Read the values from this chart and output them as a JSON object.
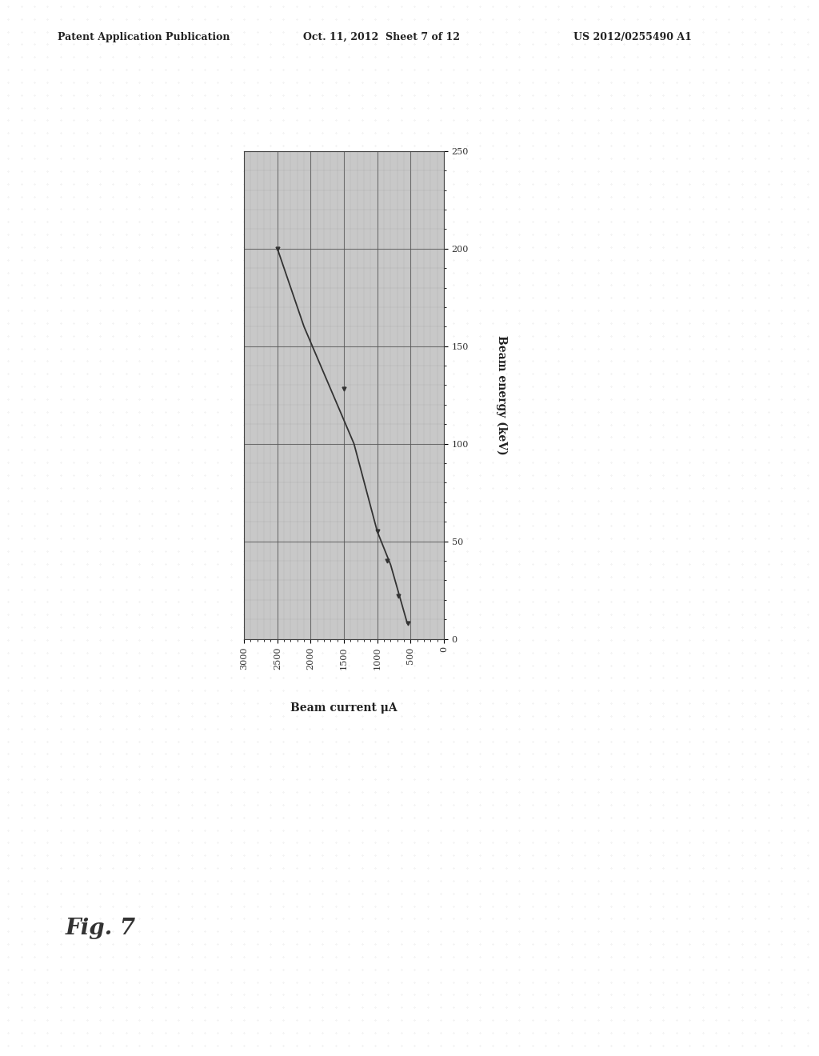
{
  "header_left": "Patent Application Publication",
  "header_center": "Oct. 11, 2012  Sheet 7 of 12",
  "header_right": "US 2012/0255490 A1",
  "fig_label": "Fig. 7",
  "xlabel": "Beam current μA",
  "ylabel": "Beam energy (keV)",
  "x_ticks": [
    3000,
    2500,
    2000,
    1500,
    1000,
    500,
    0
  ],
  "y_ticks": [
    0,
    50,
    100,
    150,
    200,
    250
  ],
  "xlim": [
    3000,
    0
  ],
  "ylim": [
    0,
    250
  ],
  "curve_x": [
    2500,
    2100,
    1700,
    1350,
    1000,
    800,
    650,
    550
  ],
  "curve_y": [
    200,
    160,
    128,
    100,
    55,
    38,
    20,
    8
  ],
  "line_color": "#333333",
  "marker_color": "#333333",
  "plot_bg_color": "#c8c8c8",
  "page_bg_color": "#f0f0f0",
  "grid_minor_color": "#999999",
  "grid_major_color": "#555555",
  "header_fontsize": 9,
  "tick_fontsize": 8,
  "label_fontsize": 10,
  "figlabel_fontsize": 20
}
